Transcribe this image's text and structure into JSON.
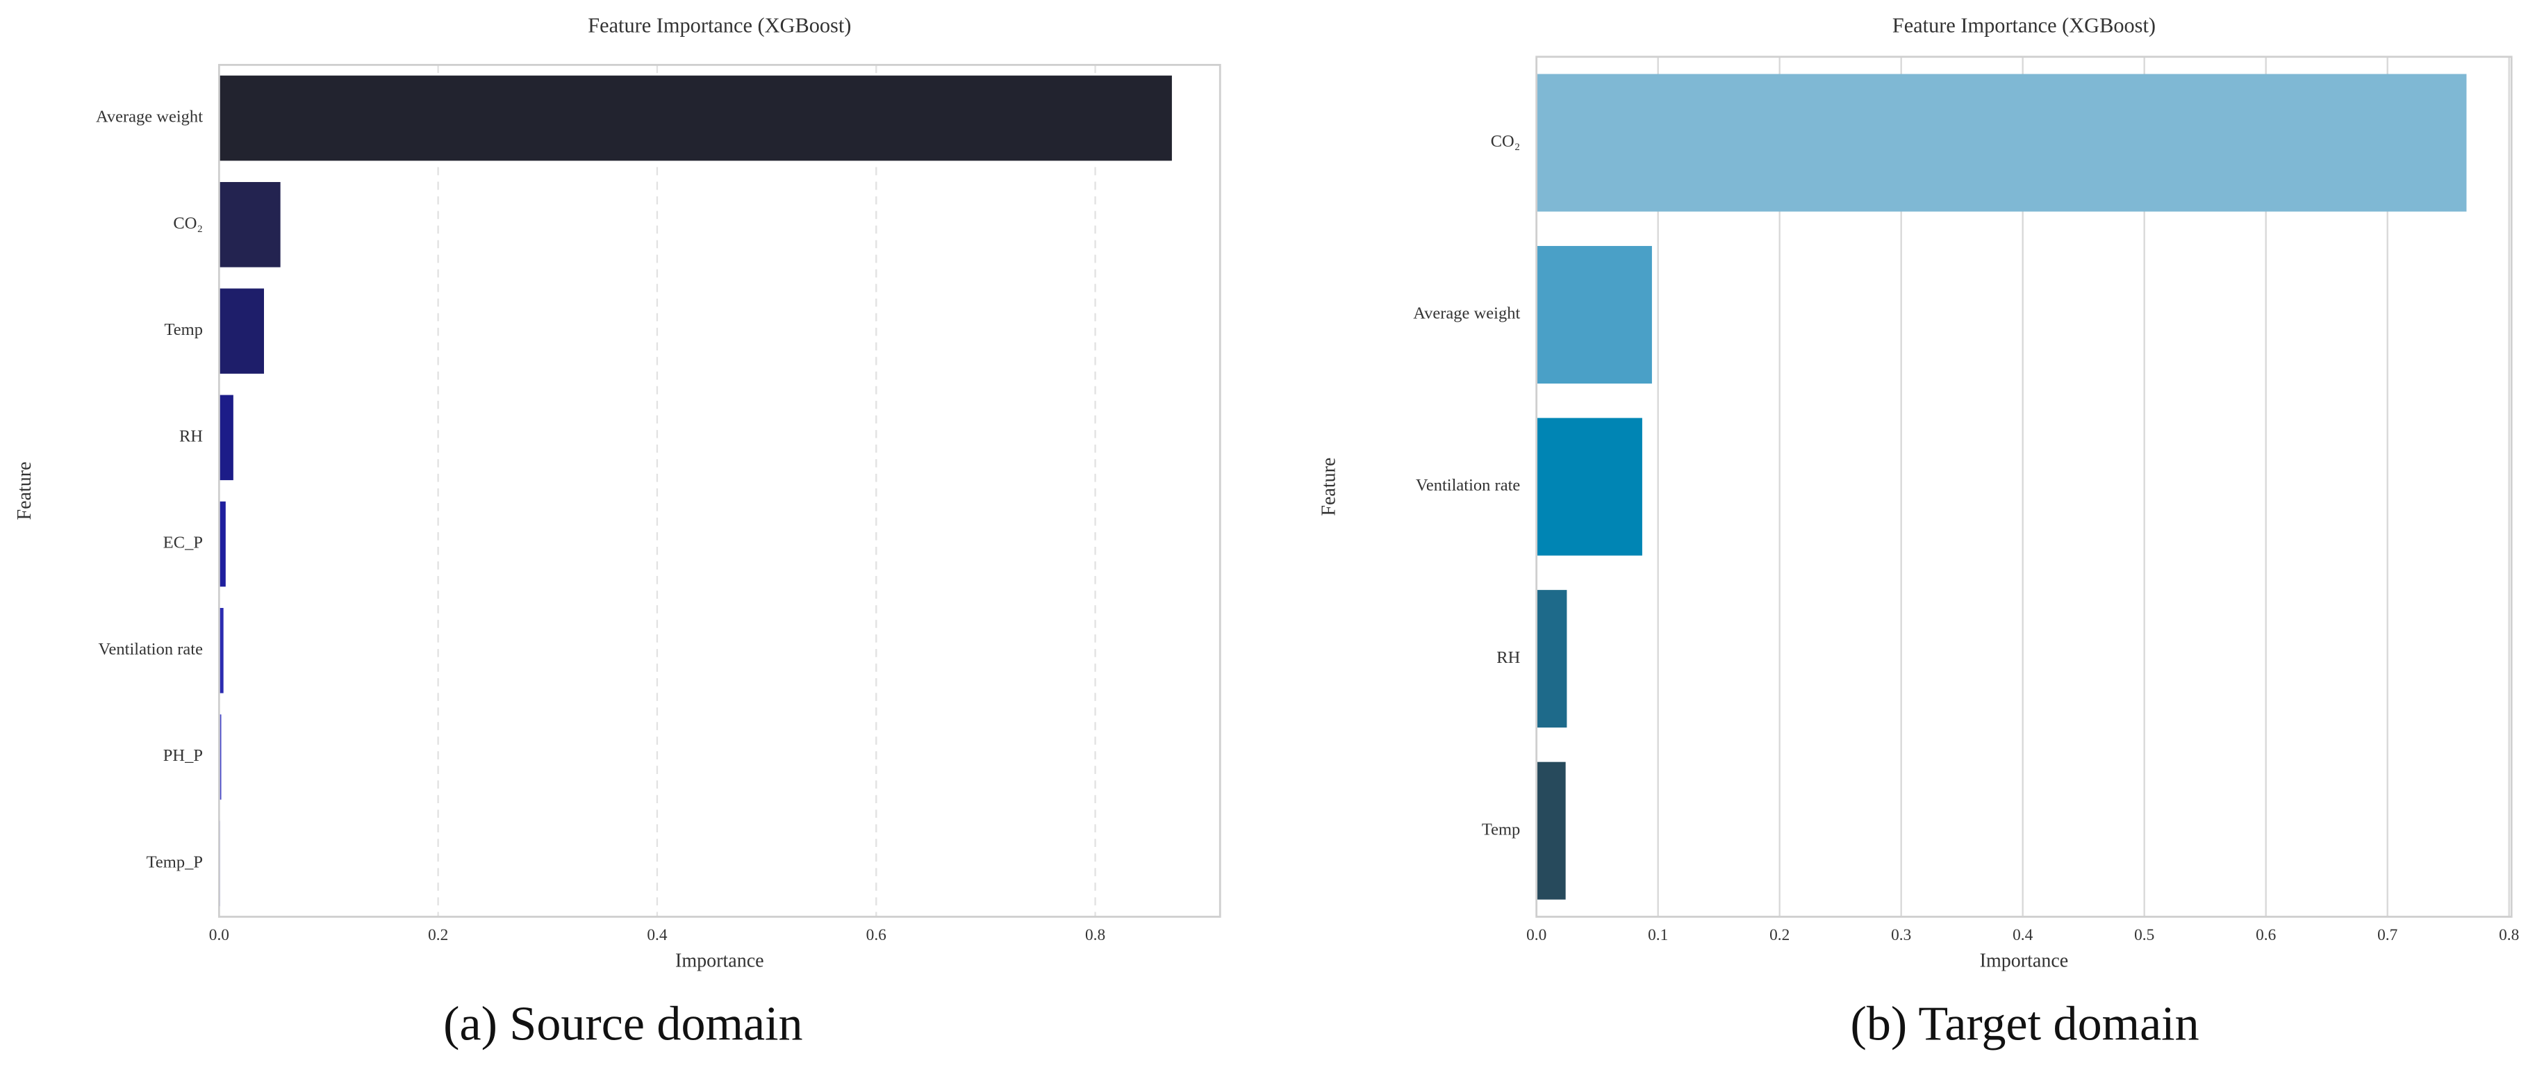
{
  "chart_data": [
    {
      "type": "barh",
      "title": "Feature Importance (XGBoost)",
      "x_label": "Importance",
      "y_label": "Feature",
      "caption": "(a) Source domain",
      "categories": [
        "Average weight",
        "CO₂",
        "Temp",
        "RH",
        "EC_P",
        "Ventilation rate",
        "PH_P",
        "Temp_P"
      ],
      "values": [
        0.87,
        0.056,
        0.041,
        0.013,
        0.006,
        0.004,
        0.002,
        0.001
      ],
      "colors": [
        "#22232f",
        "#232350",
        "#1e1e6a",
        "#1c1c88",
        "#1f1f9e",
        "#2b2bb0",
        "#4a4ac8",
        "#8a8ae0"
      ],
      "xlim": [
        0,
        0.914
      ],
      "xticks": [
        {
          "value": 0,
          "label": "0.0"
        },
        0.2,
        0.4,
        0.6,
        0.8
      ],
      "grid": true,
      "grid_style": "dashed"
    },
    {
      "type": "barh",
      "title": "Feature Importance (XGBoost)",
      "x_label": "Importance",
      "y_label": "Feature",
      "caption": "(b) Target domain",
      "categories": [
        "CO₂",
        "Average weight",
        "Ventilation rate",
        "RH",
        "Temp"
      ],
      "values": [
        0.765,
        0.095,
        0.087,
        0.025,
        0.024
      ],
      "colors": [
        "#7fb8d4",
        "#4aa0c7",
        "#0085b4",
        "#1e6a8a",
        "#274a5c"
      ],
      "xlim": [
        0,
        0.802
      ],
      "xticks": [
        {
          "value": 0,
          "label": "0.0"
        },
        0.1,
        0.2,
        0.3,
        0.4,
        0.5,
        0.6,
        0.7,
        0.8
      ],
      "grid": true,
      "grid_style": "solid"
    }
  ]
}
